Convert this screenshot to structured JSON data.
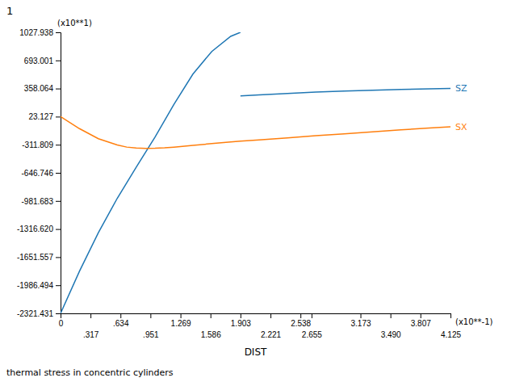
{
  "chart_data": {
    "type": "line",
    "title": "1",
    "subtitle": "thermal stress in concentric cylinders",
    "x_label": "DIST",
    "y_label": "(x10**1)",
    "annotations": [
      "(x10**-1)"
    ],
    "xlim": [
      0,
      4.125
    ],
    "ylim": [
      -2321.431,
      1027.938
    ],
    "xticks": [
      0,
      {
        "value": 0.634,
        "label": ".634"
      },
      1.269,
      1.903,
      2.538,
      3.173,
      3.807,
      {
        "value": 0.317,
        "label": ".317"
      },
      {
        "value": 0.951,
        "label": ".951"
      },
      1.586,
      2.221,
      2.655,
      {
        "value": 3.49,
        "label": "3.490"
      },
      4.125
    ],
    "yticks": [
      -2321.431,
      -1986.494,
      -1651.557,
      {
        "value": -1316.62,
        "label": "-1316.620"
      },
      -981.683,
      -646.746,
      -311.809,
      23.127,
      358.064,
      693.001,
      1027.938
    ],
    "series": [
      {
        "name": "SZ",
        "x": [
          0,
          0.2,
          0.4,
          0.6,
          0.8,
          1.0,
          1.2,
          1.4,
          1.6,
          1.8,
          1.903,
          null,
          1.903,
          2.1,
          2.4,
          2.7,
          3.0,
          3.3,
          3.6,
          3.9,
          4.125
        ],
        "values": [
          -2321.431,
          -1820.0,
          -1360.0,
          -950.0,
          -580.0,
          -220.0,
          170.0,
          530.0,
          800.0,
          980.0,
          1027.938,
          null,
          270.0,
          283.0,
          300.0,
          315.0,
          328.0,
          338.0,
          346.0,
          354.0,
          360.0
        ]
      },
      {
        "name": "SX",
        "x": [
          0,
          0.2,
          0.4,
          0.6,
          0.7,
          0.8,
          0.9,
          1.0,
          1.1,
          1.2,
          1.4,
          1.6,
          1.8,
          1.903,
          2.1,
          2.4,
          2.7,
          3.0,
          3.3,
          3.6,
          3.9,
          4.125
        ],
        "values": [
          23.127,
          -120.0,
          -240.0,
          -315.0,
          -340.0,
          -350.0,
          -355.0,
          -353.0,
          -348.0,
          -340.0,
          -320.0,
          -298.0,
          -278.0,
          -268.0,
          -255.0,
          -230.0,
          -205.0,
          -182.0,
          -158.0,
          -135.0,
          -112.0,
          -98.0
        ]
      }
    ]
  }
}
